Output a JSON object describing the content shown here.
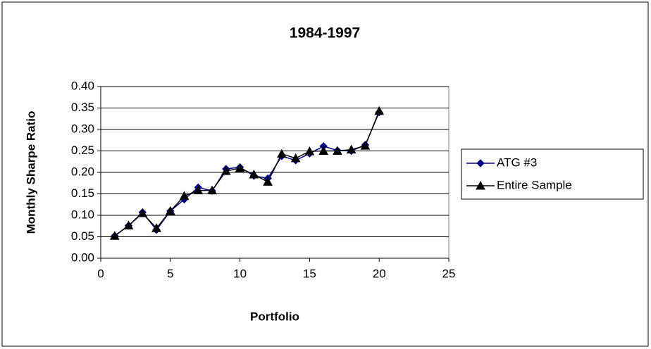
{
  "chart_data": {
    "type": "line",
    "title": "1984-1997",
    "xlabel": "Portfolio",
    "ylabel": "Monthly Sharpe Ratio",
    "x": [
      1,
      2,
      3,
      4,
      5,
      6,
      7,
      8,
      9,
      10,
      11,
      12,
      13,
      14,
      15,
      16,
      17,
      18,
      19,
      20
    ],
    "series": [
      {
        "name": "ATG #3",
        "color": "#000080",
        "marker": "diamond",
        "values": [
          0.052,
          0.076,
          0.107,
          0.066,
          0.11,
          0.137,
          0.165,
          0.157,
          0.208,
          0.212,
          0.192,
          0.186,
          0.238,
          0.228,
          0.244,
          0.261,
          0.251,
          0.25,
          0.264,
          0.34
        ]
      },
      {
        "name": "Entire Sample",
        "color": "#000000",
        "marker": "triangle",
        "values": [
          0.052,
          0.076,
          0.105,
          0.07,
          0.11,
          0.145,
          0.158,
          0.158,
          0.203,
          0.21,
          0.195,
          0.178,
          0.243,
          0.233,
          0.249,
          0.25,
          0.25,
          0.253,
          0.262,
          0.343
        ]
      }
    ],
    "xlim": [
      0,
      25
    ],
    "xticks": [
      0,
      5,
      10,
      15,
      20,
      25
    ],
    "ylim": [
      0,
      0.4
    ],
    "yticks": [
      {
        "value": 0,
        "label": "0.00"
      },
      {
        "value": 0.05,
        "label": "0.05"
      },
      {
        "value": 0.1,
        "label": "0.10"
      },
      {
        "value": 0.15,
        "label": "0.15"
      },
      {
        "value": 0.2,
        "label": "0.20"
      },
      {
        "value": 0.25,
        "label": "0.25"
      },
      {
        "value": 0.3,
        "label": "0.30"
      },
      {
        "value": 0.35,
        "label": "0.35"
      },
      {
        "value": 0.4,
        "label": "0.40"
      }
    ],
    "grid": true,
    "legend": "right"
  }
}
